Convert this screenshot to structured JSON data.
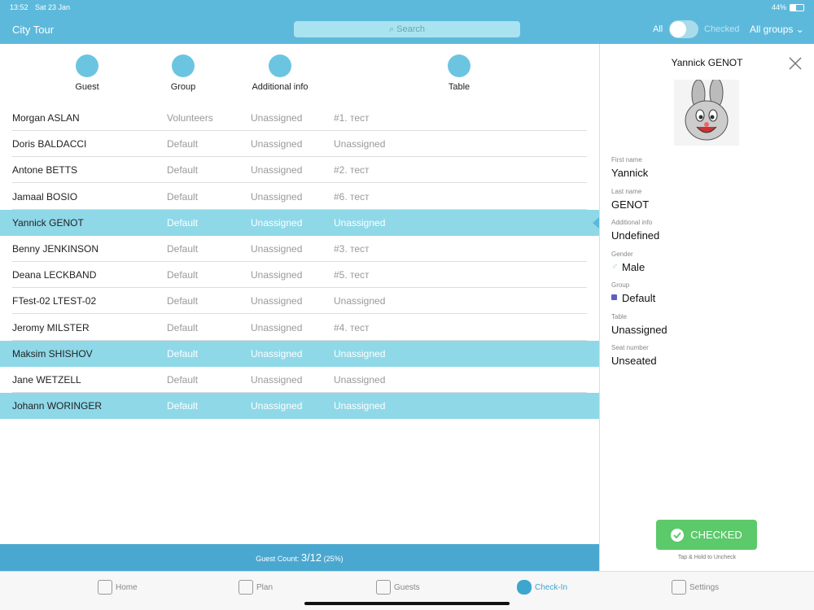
{
  "status_bar": {
    "time": "13:52",
    "date": "Sat 23 Jan",
    "battery": "44%"
  },
  "header": {
    "title": "City Tour",
    "search_placeholder": "Search",
    "toggle_left": "All",
    "toggle_right": "Checked",
    "group_filter": "All groups"
  },
  "columns": [
    "Guest",
    "Group",
    "Additional info",
    "Table"
  ],
  "rows": [
    {
      "cells": [
        "Morgan ASLAN",
        "Volunteers",
        "Unassigned",
        "#1. тест"
      ],
      "highlighted": false
    },
    {
      "cells": [
        "Doris BALDACCI",
        "Default",
        "Unassigned",
        "Unassigned"
      ],
      "highlighted": false
    },
    {
      "cells": [
        "Antone BETTS",
        "Default",
        "Unassigned",
        "#2. тест"
      ],
      "highlighted": false
    },
    {
      "cells": [
        "Jamaal BOSIO",
        "Default",
        "Unassigned",
        "#6. тест"
      ],
      "highlighted": false
    },
    {
      "cells": [
        "Yannick GENOT",
        "Default",
        "Unassigned",
        "Unassigned"
      ],
      "highlighted": true,
      "selected": true
    },
    {
      "cells": [
        "Benny JENKINSON",
        "Default",
        "Unassigned",
        "#3. тест"
      ],
      "highlighted": false
    },
    {
      "cells": [
        "Deana LECKBAND",
        "Default",
        "Unassigned",
        "#5. тест"
      ],
      "highlighted": false
    },
    {
      "cells": [
        "FTest-02 LTEST-02",
        "Default",
        "Unassigned",
        "Unassigned"
      ],
      "highlighted": false
    },
    {
      "cells": [
        "Jeromy MILSTER",
        "Default",
        "Unassigned",
        "#4. тест"
      ],
      "highlighted": false
    },
    {
      "cells": [
        "Maksim SHISHOV",
        "Default",
        "Unassigned",
        "Unassigned"
      ],
      "highlighted": true
    },
    {
      "cells": [
        "Jane WETZELL",
        "Default",
        "Unassigned",
        "Unassigned"
      ],
      "highlighted": false
    },
    {
      "cells": [
        "Johann WORINGER",
        "Default",
        "Unassigned",
        "Unassigned"
      ],
      "highlighted": true
    }
  ],
  "footer": {
    "label": "Guest Count:",
    "count": "3/12",
    "percent": "(25%)"
  },
  "detail": {
    "name": "Yannick GENOT",
    "fields": [
      {
        "label": "First name",
        "value": "Yannick"
      },
      {
        "label": "Last name",
        "value": "GENOT"
      },
      {
        "label": "Additional info",
        "value": "Undefined"
      },
      {
        "label": "Gender",
        "value": "Male",
        "icon": "gender"
      },
      {
        "label": "Group",
        "value": "Default",
        "color": "#5b5fc7"
      },
      {
        "label": "Table",
        "value": "Unassigned"
      },
      {
        "label": "Seat number",
        "value": "Unseated"
      }
    ],
    "button": "CHECKED",
    "hint": "Tap & Hold to Uncheck"
  },
  "tabs": [
    {
      "label": "Home"
    },
    {
      "label": "Plan"
    },
    {
      "label": "Guests"
    },
    {
      "label": "Check-In",
      "active": true
    },
    {
      "label": "Settings"
    }
  ]
}
